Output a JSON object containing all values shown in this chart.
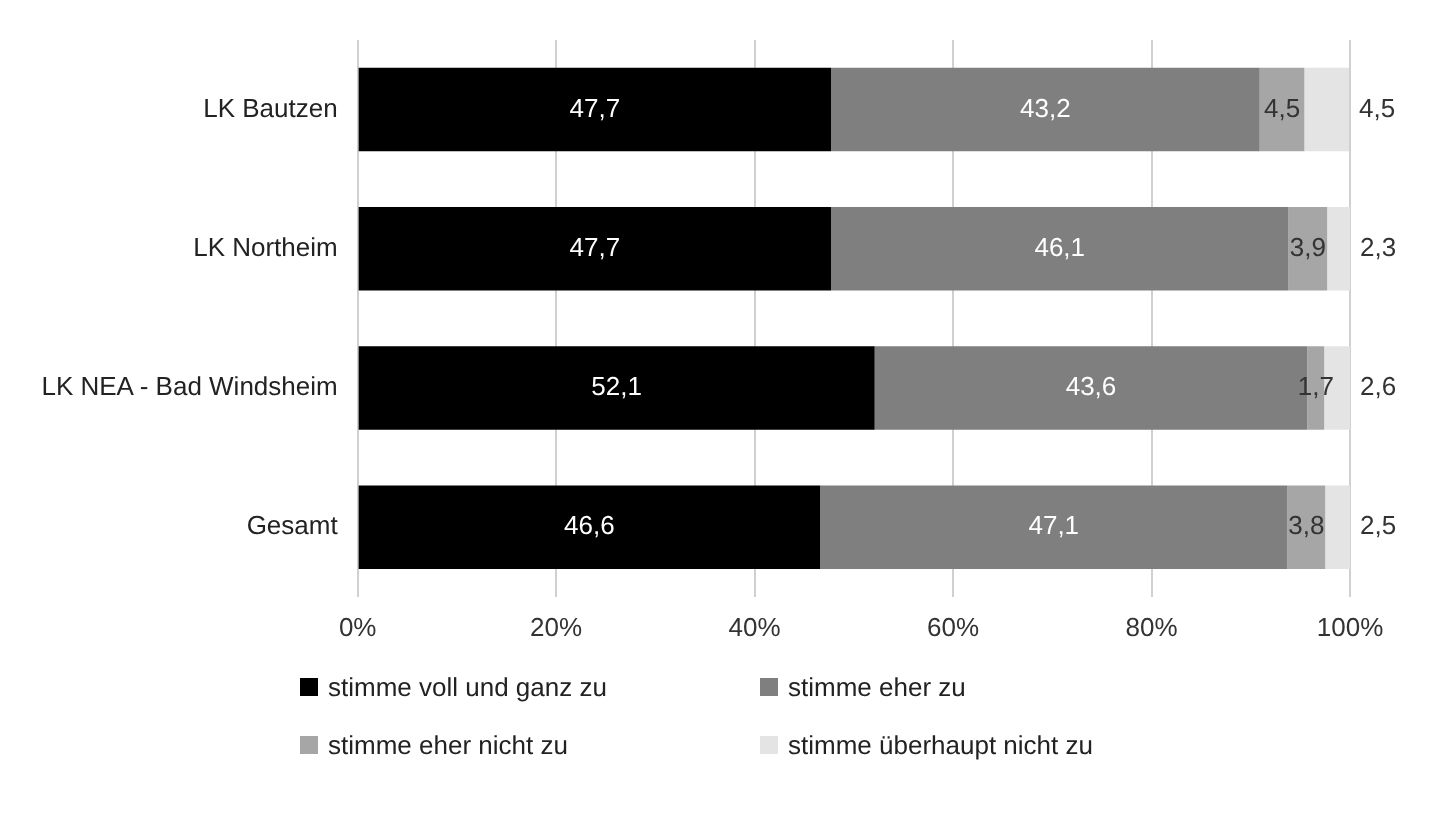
{
  "chart_data": {
    "type": "bar",
    "orientation": "horizontal",
    "stacked": true,
    "categories": [
      "LK Bautzen",
      "LK Northeim",
      "LK NEA - Bad Windsheim",
      "Gesamt"
    ],
    "series": [
      {
        "name": "stimme voll und ganz zu",
        "color": "#000000",
        "values": [
          47.7,
          47.7,
          52.1,
          46.6
        ],
        "value_labels": [
          "47,7",
          "47,7",
          "52,1",
          "46,6"
        ]
      },
      {
        "name": "stimme eher zu",
        "color": "#7f7f7f",
        "values": [
          43.2,
          46.1,
          43.6,
          47.1
        ],
        "value_labels": [
          "43,2",
          "46,1",
          "43,6",
          "47,1"
        ]
      },
      {
        "name": "stimme eher nicht zu",
        "color": "#a6a6a6",
        "values": [
          4.5,
          3.9,
          1.7,
          3.8
        ],
        "value_labels": [
          "4,5",
          "3,9",
          "1,7",
          "3,8"
        ]
      },
      {
        "name": "stimme überhaupt nicht zu",
        "color": "#e4e4e4",
        "values": [
          4.5,
          2.3,
          2.6,
          2.5
        ],
        "value_labels": [
          "4,5",
          "2,3",
          "2,6",
          "2,5"
        ]
      }
    ],
    "xlim": [
      0,
      100
    ],
    "xticks": [
      {
        "value": 0,
        "label": "0%"
      },
      {
        "value": 20,
        "label": "20%"
      },
      {
        "value": 40,
        "label": "40%"
      },
      {
        "value": 60,
        "label": "60%"
      },
      {
        "value": 80,
        "label": "80%"
      },
      {
        "value": 100,
        "label": "100%"
      }
    ],
    "grid": "x",
    "legend": "bottom"
  }
}
